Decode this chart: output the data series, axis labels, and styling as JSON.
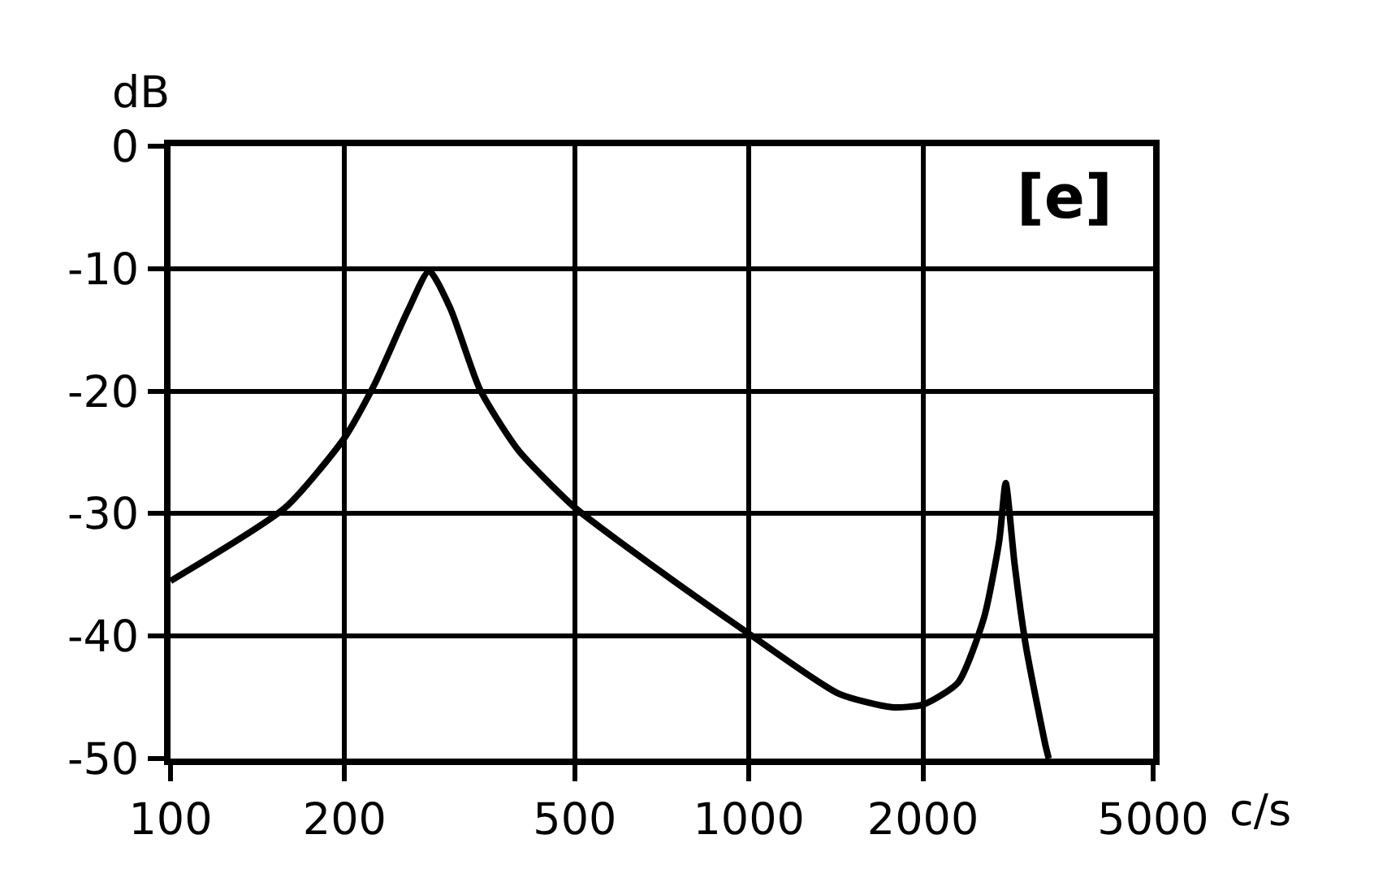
{
  "chart_data": {
    "type": "line",
    "xlabel": "c/s",
    "ylabel": "dB",
    "log": "x",
    "grid": true,
    "marker": "none",
    "line_style": "solid",
    "annotations": [
      "[e]"
    ],
    "xlim": [
      100,
      5000
    ],
    "xticks": [
      100,
      200,
      500,
      1000,
      2000,
      5000
    ],
    "ylim": [
      -50,
      0
    ],
    "yticks": [
      0,
      -10,
      -20,
      -30,
      -40,
      -50
    ],
    "series": [
      {
        "color": "#000000",
        "x": [
          100,
          158,
          200,
          225,
          258,
          280,
          305,
          343,
          399,
          500,
          693,
          1000,
          1430,
          1765,
          2000,
          2300,
          2550,
          2710,
          2780,
          2880,
          3010,
          3260,
          3300
        ],
        "values": [
          -35.5,
          -29.5,
          -23.8,
          -19.5,
          -13.3,
          -10.2,
          -13.3,
          -19.9,
          -24.8,
          -29.5,
          -34.5,
          -39.8,
          -44.7,
          -45.8,
          -45.6,
          -43.8,
          -38.5,
          -32.2,
          -27.5,
          -34.1,
          -40.7,
          -49,
          -50
        ]
      }
    ]
  }
}
